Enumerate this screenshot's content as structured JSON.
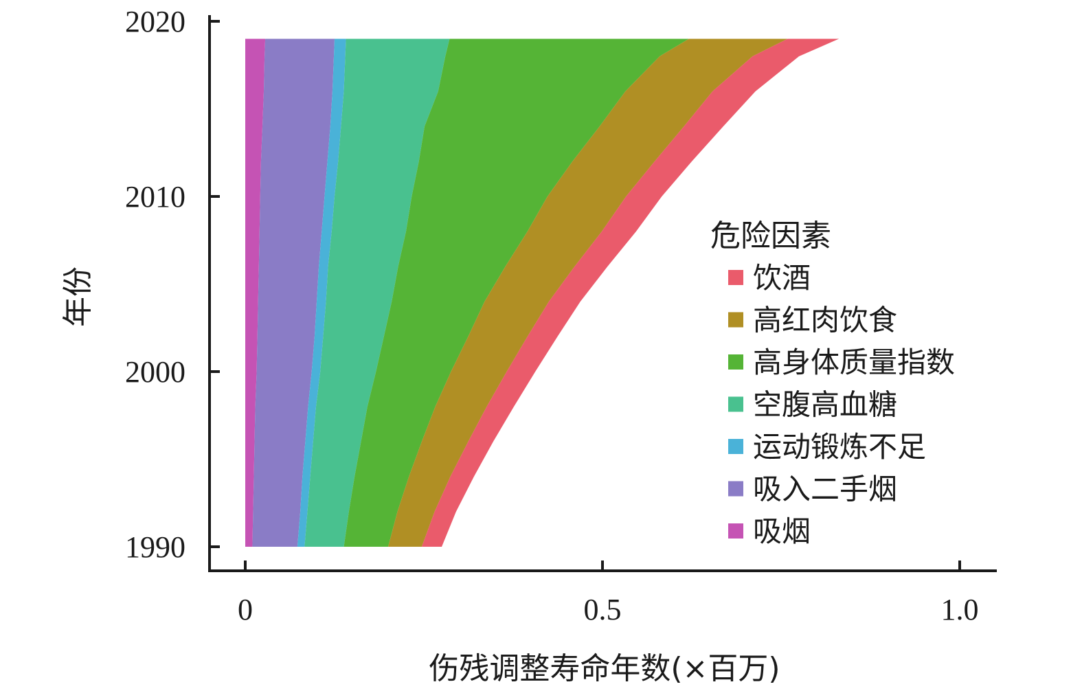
{
  "chart_data": {
    "type": "area",
    "orientation": "horizontal-stacked",
    "xlabel": "伤残调整寿命年数(×百万)",
    "ylabel": "年份",
    "xlim": [
      0,
      1.05
    ],
    "ylim": [
      1990,
      2020
    ],
    "x_ticks": [
      "0",
      "0.5",
      "1.0"
    ],
    "x_tick_values": [
      0,
      0.5,
      1.0
    ],
    "y_ticks": [
      "1990",
      "2000",
      "2010",
      "2020"
    ],
    "y_tick_values": [
      1990,
      2000,
      2010,
      2020
    ],
    "years": [
      1990,
      1992,
      1994,
      1996,
      1998,
      2000,
      2002,
      2004,
      2006,
      2008,
      2010,
      2012,
      2014,
      2016,
      2018,
      2019
    ],
    "legend": {
      "title": "危险因素",
      "position": "right"
    },
    "series": [
      {
        "name": "吸烟",
        "color": "#c553b4",
        "values": [
          0.01,
          0.011,
          0.012,
          0.013,
          0.014,
          0.016,
          0.017,
          0.018,
          0.019,
          0.02,
          0.021,
          0.022,
          0.024,
          0.026,
          0.027,
          0.028
        ]
      },
      {
        "name": "吸入二手烟",
        "color": "#8a7cc6",
        "values": [
          0.063,
          0.066,
          0.068,
          0.071,
          0.074,
          0.077,
          0.08,
          0.082,
          0.084,
          0.087,
          0.09,
          0.093,
          0.095,
          0.096,
          0.097,
          0.097
        ]
      },
      {
        "name": "运动锻炼不足",
        "color": "#4ab2d8",
        "values": [
          0.01,
          0.01,
          0.011,
          0.011,
          0.011,
          0.012,
          0.012,
          0.013,
          0.013,
          0.014,
          0.014,
          0.015,
          0.015,
          0.016,
          0.016,
          0.016
        ]
      },
      {
        "name": "空腹高血糖",
        "color": "#49c18f",
        "values": [
          0.055,
          0.058,
          0.062,
          0.067,
          0.072,
          0.078,
          0.085,
          0.092,
          0.098,
          0.104,
          0.108,
          0.113,
          0.117,
          0.132,
          0.14,
          0.145
        ]
      },
      {
        "name": "高身体质量指数",
        "color": "#55b436",
        "values": [
          0.062,
          0.068,
          0.076,
          0.085,
          0.095,
          0.105,
          0.118,
          0.13,
          0.15,
          0.17,
          0.19,
          0.215,
          0.245,
          0.262,
          0.3,
          0.335
        ]
      },
      {
        "name": "高红肉饮食",
        "color": "#b08f24",
        "values": [
          0.047,
          0.052,
          0.058,
          0.065,
          0.072,
          0.078,
          0.083,
          0.09,
          0.097,
          0.104,
          0.11,
          0.115,
          0.118,
          0.122,
          0.13,
          0.138
        ]
      },
      {
        "name": "饮酒",
        "color": "#ea5b6b",
        "values": [
          0.028,
          0.03,
          0.033,
          0.035,
          0.038,
          0.04,
          0.042,
          0.044,
          0.046,
          0.048,
          0.05,
          0.052,
          0.055,
          0.06,
          0.065,
          0.072
        ]
      }
    ]
  }
}
